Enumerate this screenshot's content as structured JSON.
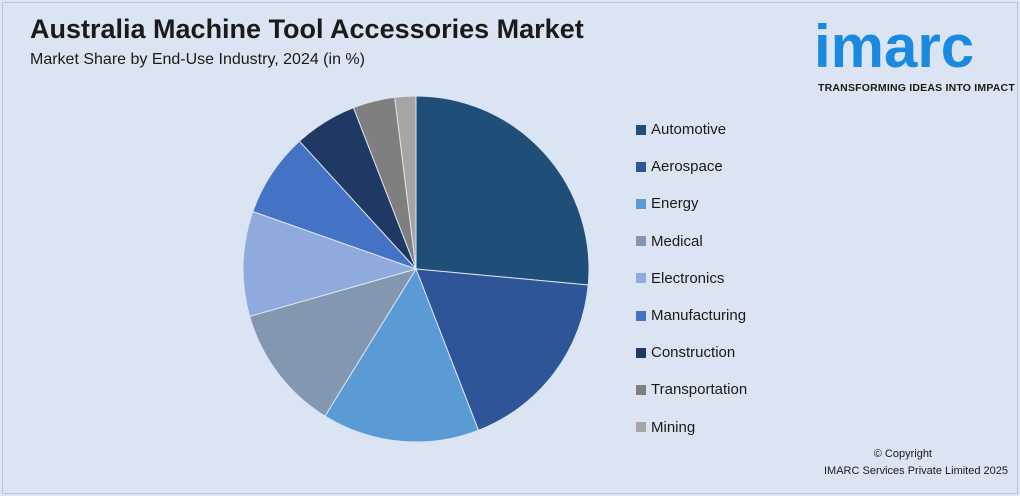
{
  "header": {
    "title": "Australia Machine Tool Accessories Market",
    "subtitle": "Market Share by End-Use Industry, 2024 (in %)"
  },
  "logo": {
    "word": "imarc",
    "tagline": "TRANSFORMING IDEAS INTO IMPACT",
    "color": "#1a8ae0"
  },
  "chart_data": {
    "type": "pie",
    "title": "Australia Machine Tool Accessories Market",
    "subtitle": "Market Share by End-Use Industry, 2024 (in %)",
    "legend_position": "right",
    "start_angle_deg": 0,
    "direction": "clockwise",
    "slices": [
      {
        "label": "Automotive",
        "value": 27,
        "color": "#1f4e79"
      },
      {
        "label": "Aerospace",
        "value": 18,
        "color": "#2e5597"
      },
      {
        "label": "Energy",
        "value": 15,
        "color": "#5b9bd5"
      },
      {
        "label": "Medical",
        "value": 12,
        "color": "#8497b0"
      },
      {
        "label": "Electronics",
        "value": 10,
        "color": "#8faadc"
      },
      {
        "label": "Manufacturing",
        "value": 8,
        "color": "#4472c4"
      },
      {
        "label": "Construction",
        "value": 6,
        "color": "#203864"
      },
      {
        "label": "Transportation",
        "value": 4,
        "color": "#7f7f7f"
      },
      {
        "label": "Mining",
        "value": 2,
        "color": "#a5a5a5"
      }
    ]
  },
  "footer": {
    "copyright_line1": "© Copyright",
    "copyright_line2": "IMARC Services Private Limited 2025"
  }
}
